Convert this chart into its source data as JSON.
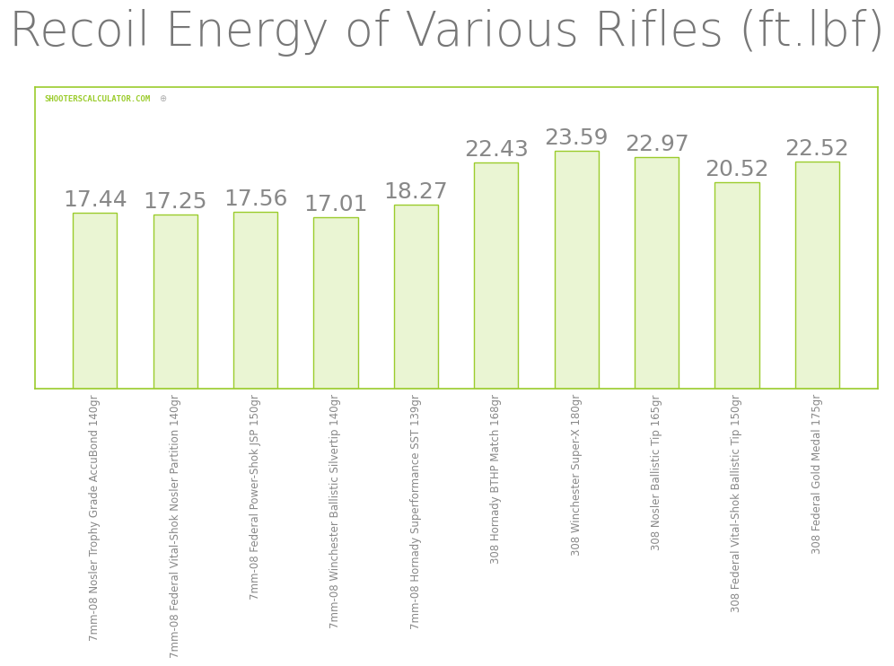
{
  "title": "Recoil Energy of Various Rifles (ft.lbf)",
  "categories": [
    "7mm-08 Nosler Trophy Grade AccuBond 140gr",
    "7mm-08 Federal Vital-Shok Nosler Partition 140gr",
    "7mm-08 Federal Power-Shok JSP 150gr",
    "7mm-08 Winchester Ballistic Silvertip 140gr",
    "7mm-08 Hornady Superformance SST 139gr",
    "308 Hornady BTHP Match 168gr",
    "308 Winchester Super-X 180gr",
    "308 Nosler Ballistic Tip 165gr",
    "308 Federal Vital-Shok Ballistic Tip 150gr",
    "308 Federal Gold Medal 175gr"
  ],
  "values": [
    17.44,
    17.25,
    17.56,
    17.01,
    18.27,
    22.43,
    23.59,
    22.97,
    20.52,
    22.52
  ],
  "bar_color": "#eaf5d3",
  "bar_edge_color": "#9bcc2c",
  "title_color": "#777777",
  "label_color": "#888888",
  "watermark_text": "SHOOTERSCALCULATOR.COM",
  "watermark_color": "#9bcc2c",
  "background_color": "#ffffff",
  "plot_bg_color": "#ffffff",
  "grid_color": "#e0e0e0",
  "box_edge_color": "#9bcc2c",
  "ylim": [
    0,
    30
  ],
  "title_fontsize": 38,
  "value_fontsize": 18,
  "tick_label_fontsize": 8.5,
  "watermark_fontsize": 6.5
}
